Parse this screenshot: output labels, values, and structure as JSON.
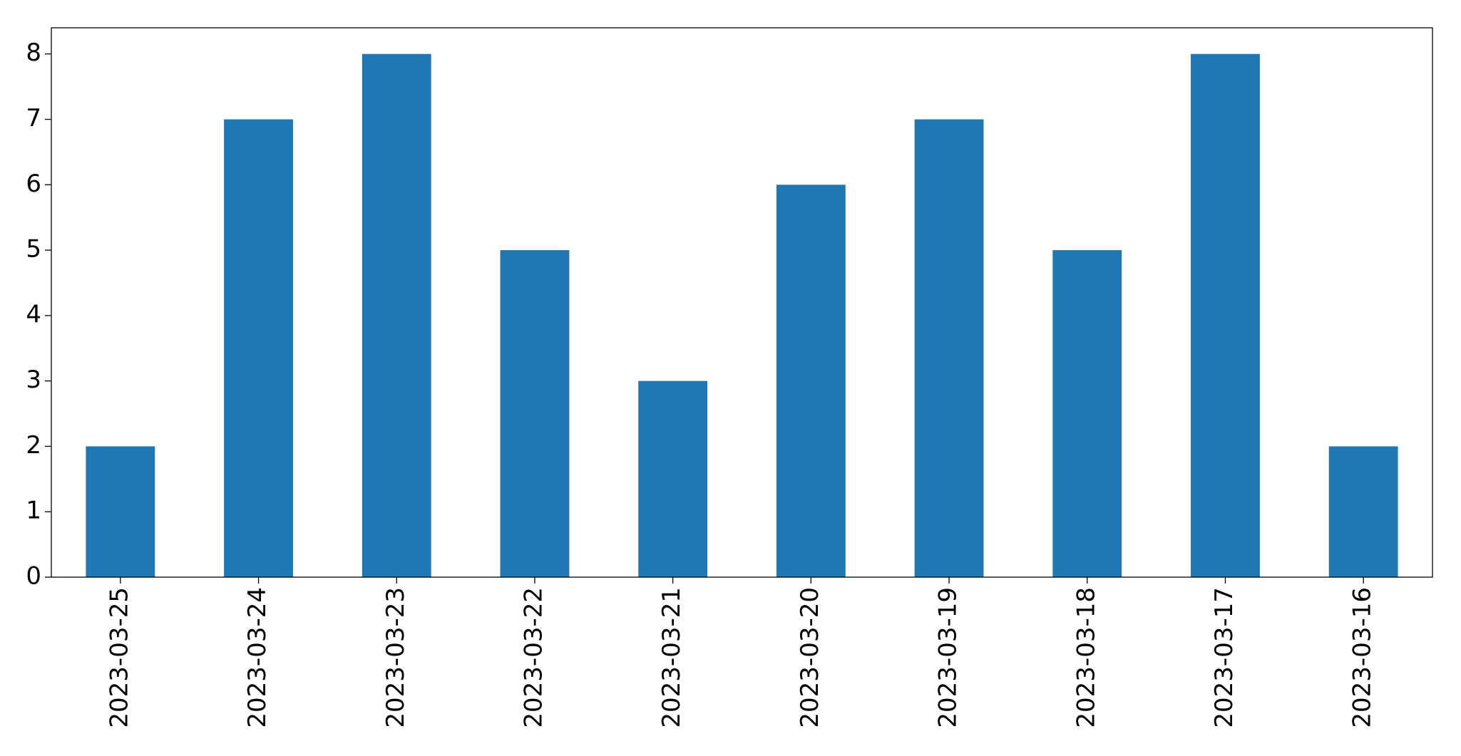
{
  "chart_data": {
    "type": "bar",
    "categories": [
      "2023-03-25",
      "2023-03-24",
      "2023-03-23",
      "2023-03-22",
      "2023-03-21",
      "2023-03-20",
      "2023-03-19",
      "2023-03-18",
      "2023-03-17",
      "2023-03-16"
    ],
    "values": [
      2,
      7,
      8,
      5,
      3,
      6,
      7,
      5,
      8,
      2
    ],
    "color": "#1f77b4",
    "ylim": [
      0,
      8.4
    ],
    "yticks": [
      0,
      1,
      2,
      3,
      4,
      5,
      6,
      7,
      8
    ],
    "grid": false
  }
}
